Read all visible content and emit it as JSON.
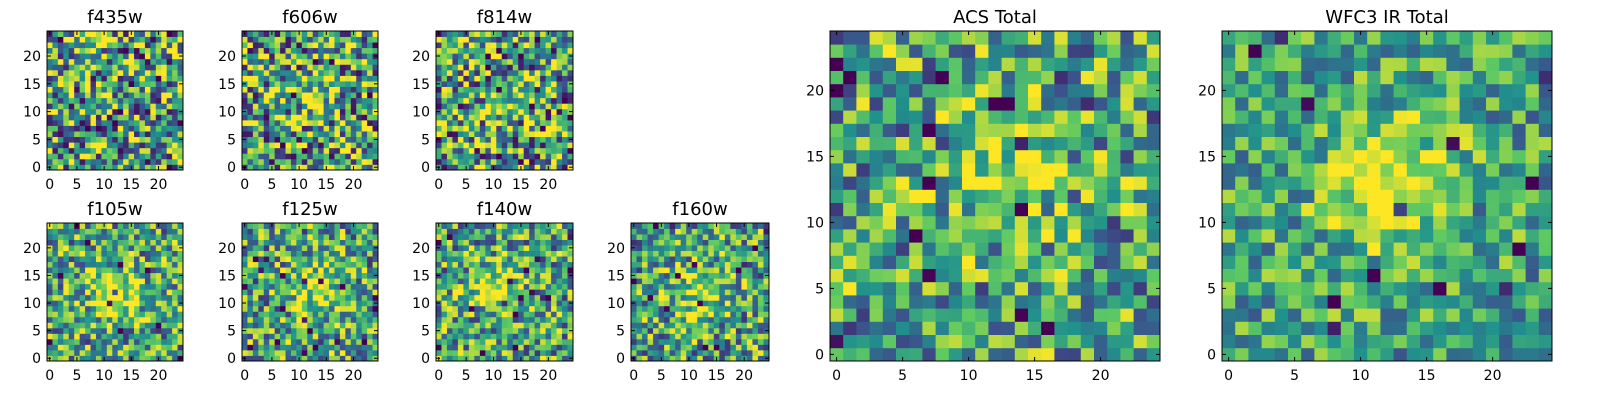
{
  "figure": {
    "colormap": "viridis",
    "colors": [
      "#440154",
      "#3b528b",
      "#21918c",
      "#5ec962",
      "#fde725"
    ]
  },
  "chart_data": [
    {
      "type": "heatmap",
      "title": "f435w",
      "grid_size": 25,
      "xlim": [
        -0.5,
        24.5
      ],
      "ylim": [
        -0.5,
        24.5
      ],
      "xticks": [
        0,
        5,
        10,
        15,
        20
      ],
      "yticks": [
        0,
        5,
        10,
        15,
        20
      ],
      "peak": [
        12,
        12
      ],
      "peak_strength": 0.05,
      "noise_level": "high",
      "seed": 11
    },
    {
      "type": "heatmap",
      "title": "f606w",
      "grid_size": 25,
      "xlim": [
        -0.5,
        24.5
      ],
      "ylim": [
        -0.5,
        24.5
      ],
      "xticks": [
        0,
        5,
        10,
        15,
        20
      ],
      "yticks": [
        0,
        5,
        10,
        15,
        20
      ],
      "peak": [
        13,
        13
      ],
      "peak_strength": 0.25,
      "noise_level": "high",
      "seed": 23
    },
    {
      "type": "heatmap",
      "title": "f814w",
      "grid_size": 25,
      "xlim": [
        -0.5,
        24.5
      ],
      "ylim": [
        -0.5,
        24.5
      ],
      "xticks": [
        0,
        5,
        10,
        15,
        20
      ],
      "yticks": [
        0,
        5,
        10,
        15,
        20
      ],
      "peak": [
        12,
        12
      ],
      "peak_strength": 0.2,
      "noise_level": "high",
      "seed": 37
    },
    {
      "type": "heatmap",
      "title": "f105w",
      "grid_size": 25,
      "xlim": [
        -0.5,
        24.5
      ],
      "ylim": [
        -0.5,
        24.5
      ],
      "xticks": [
        0,
        5,
        10,
        15,
        20
      ],
      "yticks": [
        0,
        5,
        10,
        15,
        20
      ],
      "peak": [
        12,
        12
      ],
      "peak_strength": 0.45,
      "noise_level": "medium",
      "seed": 41
    },
    {
      "type": "heatmap",
      "title": "f125w",
      "grid_size": 25,
      "xlim": [
        -0.5,
        24.5
      ],
      "ylim": [
        -0.5,
        24.5
      ],
      "xticks": [
        0,
        5,
        10,
        15,
        20
      ],
      "yticks": [
        0,
        5,
        10,
        15,
        20
      ],
      "peak": [
        13,
        13
      ],
      "peak_strength": 0.35,
      "noise_level": "medium",
      "seed": 53
    },
    {
      "type": "heatmap",
      "title": "f140w",
      "grid_size": 25,
      "xlim": [
        -0.5,
        24.5
      ],
      "ylim": [
        -0.5,
        24.5
      ],
      "xticks": [
        0,
        5,
        10,
        15,
        20
      ],
      "yticks": [
        0,
        5,
        10,
        15,
        20
      ],
      "peak": [
        11,
        13
      ],
      "peak_strength": 0.35,
      "noise_level": "medium",
      "seed": 67
    },
    {
      "type": "heatmap",
      "title": "f160w",
      "grid_size": 25,
      "xlim": [
        -0.5,
        24.5
      ],
      "ylim": [
        -0.5,
        24.5
      ],
      "xticks": [
        0,
        5,
        10,
        15,
        20
      ],
      "yticks": [
        0,
        5,
        10,
        15,
        20
      ],
      "peak": [
        12,
        12
      ],
      "peak_strength": 0.3,
      "noise_level": "medium",
      "seed": 79
    },
    {
      "type": "heatmap",
      "title": "ACS Total",
      "grid_size": 25,
      "xlim": [
        -0.5,
        24.5
      ],
      "ylim": [
        -0.5,
        24.5
      ],
      "xticks": [
        0,
        5,
        10,
        15,
        20
      ],
      "yticks": [
        0,
        5,
        10,
        15,
        20
      ],
      "peak": [
        13,
        14
      ],
      "peak_strength": 0.35,
      "noise_level": "medium",
      "seed": 83
    },
    {
      "type": "heatmap",
      "title": "WFC3 IR Total",
      "grid_size": 25,
      "xlim": [
        -0.5,
        24.5
      ],
      "ylim": [
        -0.5,
        24.5
      ],
      "xticks": [
        0,
        5,
        10,
        15,
        20
      ],
      "yticks": [
        0,
        5,
        10,
        15,
        20
      ],
      "peak": [
        12,
        13
      ],
      "peak_strength": 0.55,
      "noise_level": "low",
      "seed": 97
    }
  ]
}
